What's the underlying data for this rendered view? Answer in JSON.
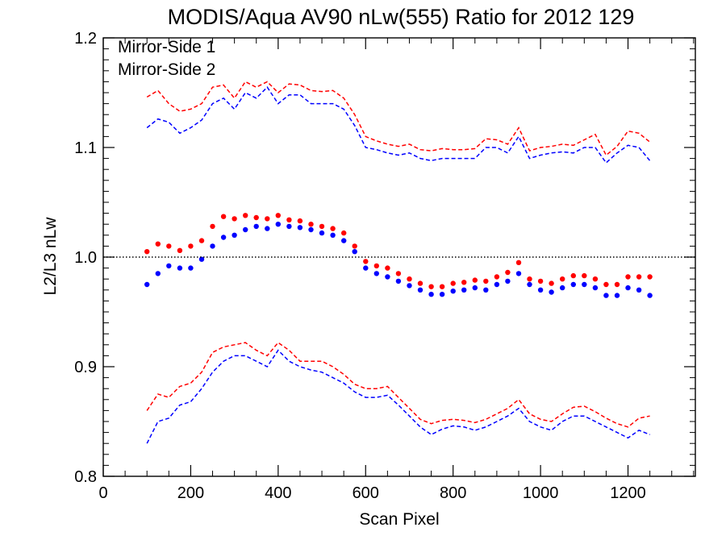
{
  "chart_data": {
    "type": "scatter",
    "title": "MODIS/Aqua AV90 nLw(555) Ratio for 2012 129",
    "xlabel": "Scan Pixel",
    "ylabel": "L2/L3 nLw",
    "xlim": [
      0,
      1354
    ],
    "ylim": [
      0.8,
      1.2
    ],
    "x_ticks": [
      0,
      200,
      400,
      600,
      800,
      1000,
      1200
    ],
    "y_ticks": [
      0.8,
      0.9,
      1.0,
      1.1,
      1.2
    ],
    "x_tick_labels": [
      "0",
      "200",
      "400",
      "600",
      "800",
      "1000",
      "1200"
    ],
    "y_tick_labels": [
      "0.8",
      "0.9",
      "1.0",
      "1.1",
      "1.2"
    ],
    "reference_line": 1.0,
    "legend_position": "top-left",
    "colors": {
      "side1": "#0000ff",
      "side2": "#ff0000"
    },
    "series": [
      {
        "name": "Mirror-Side 1",
        "color": "#0000ff",
        "style": "points",
        "x": [
          100,
          125,
          150,
          175,
          200,
          225,
          250,
          275,
          300,
          325,
          350,
          375,
          400,
          425,
          450,
          475,
          500,
          525,
          550,
          575,
          600,
          625,
          650,
          675,
          700,
          725,
          750,
          775,
          800,
          825,
          850,
          875,
          900,
          925,
          950,
          975,
          1000,
          1025,
          1050,
          1075,
          1100,
          1125,
          1150,
          1175,
          1200,
          1225,
          1250
        ],
        "values": [
          0.975,
          0.985,
          0.992,
          0.99,
          0.99,
          0.998,
          1.01,
          1.018,
          1.02,
          1.025,
          1.028,
          1.026,
          1.03,
          1.028,
          1.027,
          1.025,
          1.022,
          1.02,
          1.015,
          1.005,
          0.99,
          0.985,
          0.982,
          0.978,
          0.974,
          0.97,
          0.966,
          0.966,
          0.969,
          0.97,
          0.972,
          0.97,
          0.975,
          0.978,
          0.985,
          0.975,
          0.97,
          0.968,
          0.972,
          0.975,
          0.975,
          0.972,
          0.965,
          0.965,
          0.972,
          0.97,
          0.965
        ]
      },
      {
        "name": "Mirror-Side 2",
        "color": "#ff0000",
        "style": "points",
        "x": [
          100,
          125,
          150,
          175,
          200,
          225,
          250,
          275,
          300,
          325,
          350,
          375,
          400,
          425,
          450,
          475,
          500,
          525,
          550,
          575,
          600,
          625,
          650,
          675,
          700,
          725,
          750,
          775,
          800,
          825,
          850,
          875,
          900,
          925,
          950,
          975,
          1000,
          1025,
          1050,
          1075,
          1100,
          1125,
          1150,
          1175,
          1200,
          1225,
          1250
        ],
        "values": [
          1.005,
          1.012,
          1.01,
          1.006,
          1.01,
          1.015,
          1.028,
          1.037,
          1.035,
          1.038,
          1.036,
          1.035,
          1.038,
          1.034,
          1.033,
          1.03,
          1.028,
          1.026,
          1.022,
          1.01,
          0.996,
          0.992,
          0.99,
          0.985,
          0.98,
          0.976,
          0.973,
          0.973,
          0.976,
          0.977,
          0.979,
          0.978,
          0.982,
          0.986,
          0.995,
          0.98,
          0.978,
          0.976,
          0.98,
          0.983,
          0.983,
          0.98,
          0.975,
          0.975,
          0.982,
          0.982,
          0.982
        ]
      },
      {
        "name": "Mirror-Side 1 upper",
        "color": "#0000ff",
        "style": "dashed",
        "x": [
          100,
          125,
          150,
          175,
          200,
          225,
          250,
          275,
          300,
          325,
          350,
          375,
          400,
          425,
          450,
          475,
          500,
          525,
          550,
          575,
          600,
          625,
          650,
          675,
          700,
          725,
          750,
          775,
          800,
          825,
          850,
          875,
          900,
          925,
          950,
          975,
          1000,
          1025,
          1050,
          1075,
          1100,
          1125,
          1150,
          1175,
          1200,
          1225,
          1250
        ],
        "values": [
          1.118,
          1.126,
          1.123,
          1.113,
          1.118,
          1.125,
          1.14,
          1.145,
          1.135,
          1.15,
          1.145,
          1.155,
          1.14,
          1.148,
          1.148,
          1.14,
          1.14,
          1.14,
          1.135,
          1.12,
          1.1,
          1.098,
          1.095,
          1.093,
          1.095,
          1.09,
          1.088,
          1.09,
          1.09,
          1.09,
          1.09,
          1.1,
          1.1,
          1.095,
          1.11,
          1.09,
          1.093,
          1.095,
          1.096,
          1.095,
          1.1,
          1.1,
          1.086,
          1.095,
          1.102,
          1.1,
          1.088
        ]
      },
      {
        "name": "Mirror-Side 2 upper",
        "color": "#ff0000",
        "style": "dashed",
        "x": [
          100,
          125,
          150,
          175,
          200,
          225,
          250,
          275,
          300,
          325,
          350,
          375,
          400,
          425,
          450,
          475,
          500,
          525,
          550,
          575,
          600,
          625,
          650,
          675,
          700,
          725,
          750,
          775,
          800,
          825,
          850,
          875,
          900,
          925,
          950,
          975,
          1000,
          1025,
          1050,
          1075,
          1100,
          1125,
          1150,
          1175,
          1200,
          1225,
          1250
        ],
        "values": [
          1.146,
          1.152,
          1.14,
          1.133,
          1.135,
          1.14,
          1.155,
          1.157,
          1.145,
          1.16,
          1.155,
          1.16,
          1.15,
          1.158,
          1.157,
          1.152,
          1.151,
          1.152,
          1.145,
          1.13,
          1.11,
          1.106,
          1.103,
          1.101,
          1.103,
          1.098,
          1.097,
          1.099,
          1.098,
          1.098,
          1.099,
          1.108,
          1.107,
          1.103,
          1.118,
          1.097,
          1.1,
          1.101,
          1.103,
          1.102,
          1.107,
          1.112,
          1.093,
          1.101,
          1.115,
          1.113,
          1.105
        ]
      },
      {
        "name": "Mirror-Side 1 lower",
        "color": "#0000ff",
        "style": "dashed",
        "x": [
          100,
          125,
          150,
          175,
          200,
          225,
          250,
          275,
          300,
          325,
          350,
          375,
          400,
          425,
          450,
          475,
          500,
          525,
          550,
          575,
          600,
          625,
          650,
          675,
          700,
          725,
          750,
          775,
          800,
          825,
          850,
          875,
          900,
          925,
          950,
          975,
          1000,
          1025,
          1050,
          1075,
          1100,
          1125,
          1150,
          1175,
          1200,
          1225,
          1250
        ],
        "values": [
          0.83,
          0.85,
          0.853,
          0.865,
          0.868,
          0.88,
          0.895,
          0.905,
          0.91,
          0.91,
          0.905,
          0.9,
          0.915,
          0.905,
          0.9,
          0.897,
          0.895,
          0.89,
          0.885,
          0.877,
          0.872,
          0.872,
          0.874,
          0.865,
          0.855,
          0.845,
          0.838,
          0.843,
          0.846,
          0.845,
          0.842,
          0.845,
          0.85,
          0.855,
          0.862,
          0.85,
          0.845,
          0.842,
          0.85,
          0.855,
          0.855,
          0.85,
          0.845,
          0.84,
          0.835,
          0.842,
          0.838
        ]
      },
      {
        "name": "Mirror-Side 2 lower",
        "color": "#ff0000",
        "style": "dashed",
        "x": [
          100,
          125,
          150,
          175,
          200,
          225,
          250,
          275,
          300,
          325,
          350,
          375,
          400,
          425,
          450,
          475,
          500,
          525,
          550,
          575,
          600,
          625,
          650,
          675,
          700,
          725,
          750,
          775,
          800,
          825,
          850,
          875,
          900,
          925,
          950,
          975,
          1000,
          1025,
          1050,
          1075,
          1100,
          1125,
          1150,
          1175,
          1200,
          1225,
          1250
        ],
        "values": [
          0.86,
          0.875,
          0.872,
          0.882,
          0.885,
          0.895,
          0.913,
          0.918,
          0.92,
          0.922,
          0.915,
          0.91,
          0.922,
          0.915,
          0.905,
          0.905,
          0.905,
          0.9,
          0.893,
          0.884,
          0.88,
          0.88,
          0.882,
          0.872,
          0.862,
          0.852,
          0.848,
          0.851,
          0.852,
          0.851,
          0.849,
          0.852,
          0.857,
          0.862,
          0.87,
          0.857,
          0.852,
          0.85,
          0.857,
          0.863,
          0.864,
          0.859,
          0.853,
          0.848,
          0.845,
          0.853,
          0.855
        ]
      }
    ]
  }
}
